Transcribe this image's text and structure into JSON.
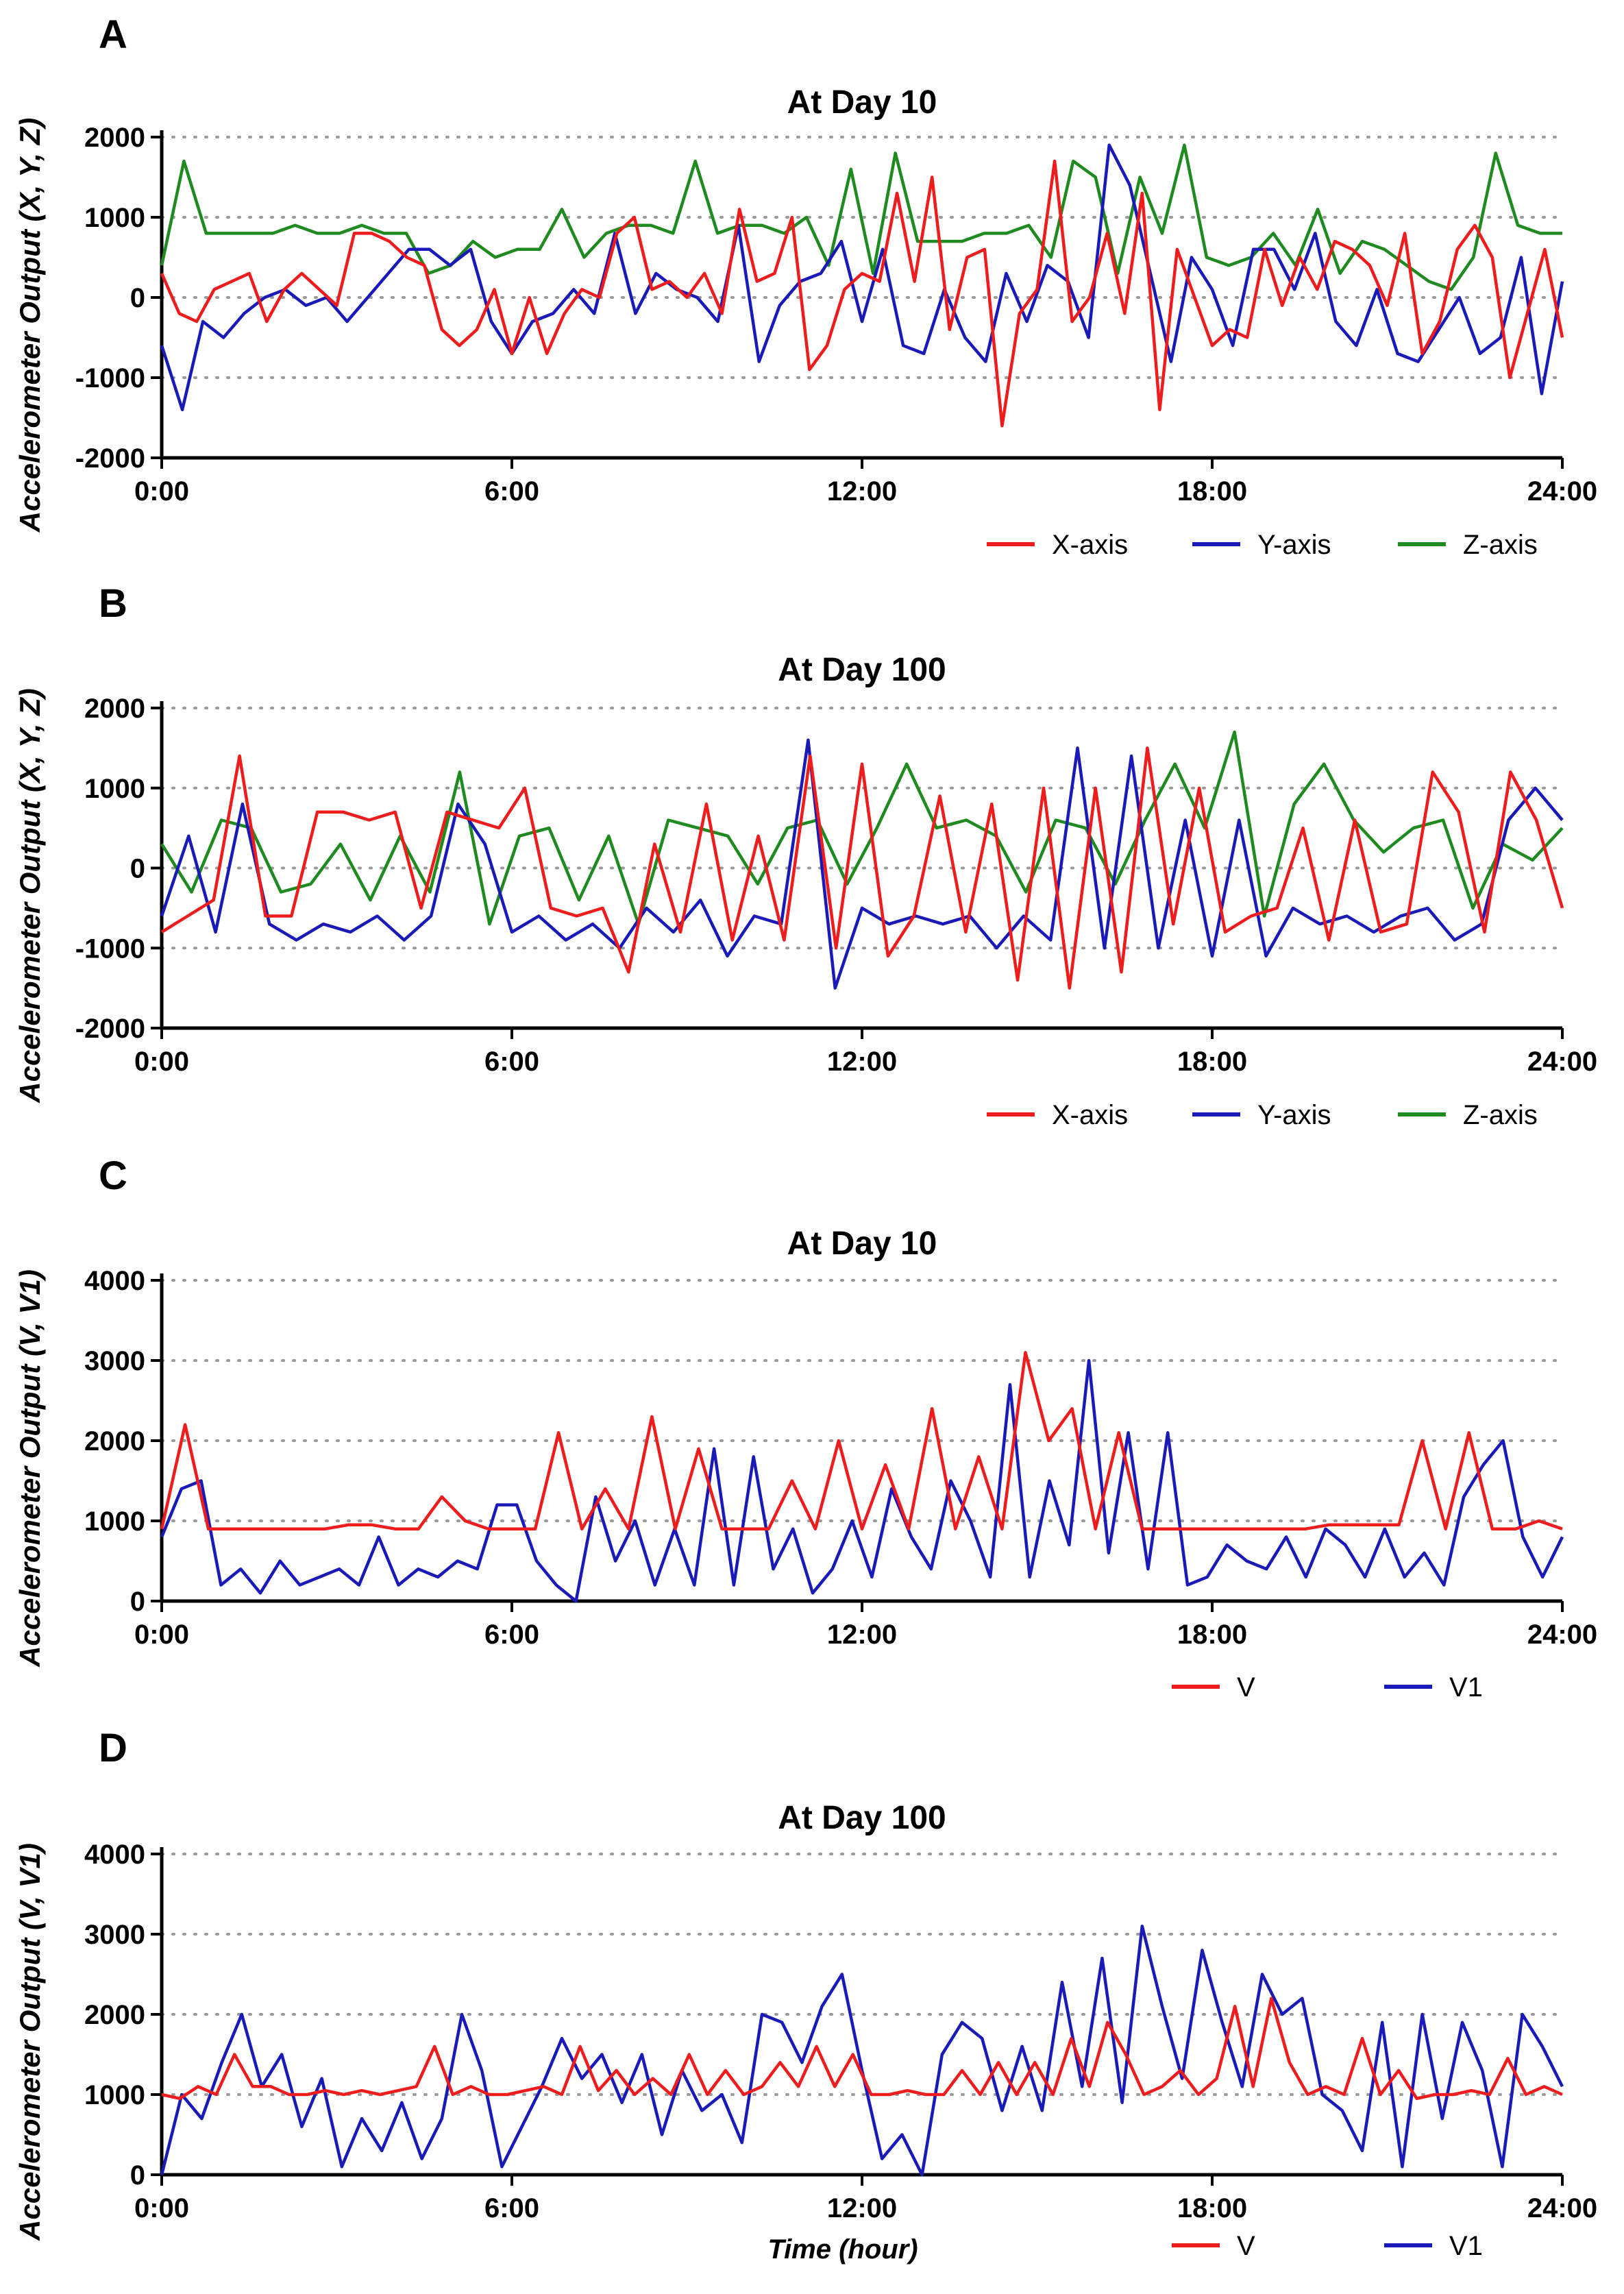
{
  "colors": {
    "red": "#ee1c1c",
    "blue": "#1a1ab8",
    "green": "#1f8a1f",
    "grid": "#9a9a9a",
    "axis": "#000000"
  },
  "chart_data": [
    {
      "panel": "A",
      "type": "line",
      "title": "At Day 10",
      "ylabel": "Accelerometer Output  (X, Y, Z)",
      "xlabel": "",
      "xlim": [
        0,
        24
      ],
      "ylim": [
        -2000,
        2000
      ],
      "x_ticks": [
        "0:00",
        "6:00",
        "12:00",
        "18:00",
        "24:00"
      ],
      "y_ticks": [
        "2000",
        "1000",
        "0",
        "-1000",
        "-2000"
      ],
      "grid": "horizontal dotted",
      "legend_position": "bottom-right",
      "series": [
        {
          "name": "X-axis",
          "color": "red",
          "values": [
            300,
            -200,
            -300,
            100,
            200,
            300,
            -300,
            100,
            300,
            100,
            -100,
            800,
            800,
            700,
            500,
            400,
            -400,
            -600,
            -400,
            100,
            -700,
            0,
            -700,
            -200,
            100,
            0,
            800,
            1000,
            100,
            200,
            0,
            300,
            -200,
            1100,
            200,
            300,
            1000,
            -900,
            -600,
            100,
            300,
            200,
            1300,
            200,
            1500,
            -400,
            500,
            600,
            -1600,
            -200,
            100,
            1700,
            -300,
            0,
            800,
            -200,
            1300,
            -1400,
            600,
            0,
            -600,
            -400,
            -500,
            600,
            -100,
            500,
            100,
            700,
            600,
            400,
            -100,
            800,
            -700,
            -300,
            600,
            900,
            500,
            -1000,
            -200,
            600,
            -500
          ]
        },
        {
          "name": "Y-axis",
          "color": "blue",
          "values": [
            -600,
            -1400,
            -300,
            -500,
            -200,
            0,
            100,
            -100,
            0,
            -300,
            0,
            300,
            600,
            600,
            400,
            600,
            -300,
            -700,
            -300,
            -200,
            100,
            -200,
            800,
            -200,
            300,
            100,
            0,
            -300,
            900,
            -800,
            -100,
            200,
            300,
            700,
            -300,
            600,
            -600,
            -700,
            100,
            -500,
            -800,
            300,
            -300,
            400,
            200,
            -500,
            1900,
            1400,
            300,
            -800,
            500,
            100,
            -600,
            600,
            600,
            100,
            800,
            -300,
            -600,
            100,
            -700,
            -800,
            -400,
            0,
            -700,
            -500,
            500,
            -1200,
            200
          ]
        },
        {
          "name": "Z-axis",
          "color": "green",
          "values": [
            400,
            1700,
            800,
            800,
            800,
            800,
            900,
            800,
            800,
            900,
            800,
            800,
            300,
            400,
            700,
            500,
            600,
            600,
            1100,
            500,
            800,
            900,
            900,
            800,
            1700,
            800,
            900,
            900,
            800,
            1000,
            400,
            1600,
            300,
            1800,
            700,
            700,
            700,
            800,
            800,
            900,
            500,
            1700,
            1500,
            300,
            1500,
            800,
            1900,
            500,
            400,
            500,
            800,
            400,
            1100,
            300,
            700,
            600,
            400,
            200,
            100,
            500,
            1800,
            900,
            800,
            800
          ]
        }
      ]
    },
    {
      "panel": "B",
      "type": "line",
      "title": "At Day 100",
      "ylabel": "Accelerometer Output  (X, Y, Z)",
      "xlabel": "",
      "xlim": [
        0,
        24
      ],
      "ylim": [
        -2000,
        2000
      ],
      "x_ticks": [
        "0:00",
        "6:00",
        "12:00",
        "18:00",
        "24:00"
      ],
      "y_ticks": [
        "2000",
        "1000",
        "0",
        "-1000",
        "-2000"
      ],
      "grid": "horizontal dotted",
      "legend_position": "bottom-right",
      "series": [
        {
          "name": "X-axis",
          "color": "red",
          "values": [
            -800,
            -600,
            -400,
            1400,
            -600,
            -600,
            700,
            700,
            600,
            700,
            -500,
            700,
            600,
            500,
            1000,
            -500,
            -600,
            -500,
            -1300,
            300,
            -800,
            800,
            -900,
            400,
            -900,
            1400,
            -1000,
            1300,
            -1100,
            -600,
            900,
            -800,
            800,
            -1400,
            1000,
            -1500,
            1000,
            -1300,
            1500,
            -700,
            1000,
            -800,
            -600,
            -500,
            500,
            -900,
            600,
            -800,
            -700,
            1200,
            700,
            -800,
            1200,
            600,
            -500
          ]
        },
        {
          "name": "Y-axis",
          "color": "blue",
          "values": [
            -600,
            400,
            -800,
            800,
            -700,
            -900,
            -700,
            -800,
            -600,
            -900,
            -600,
            800,
            300,
            -800,
            -600,
            -900,
            -700,
            -1000,
            -500,
            -800,
            -400,
            -1100,
            -600,
            -700,
            1600,
            -1500,
            -500,
            -700,
            -600,
            -700,
            -600,
            -1000,
            -600,
            -900,
            1500,
            -1000,
            1400,
            -1000,
            600,
            -1100,
            600,
            -1100,
            -500,
            -700,
            -600,
            -800,
            -600,
            -500,
            -900,
            -700,
            600,
            1000,
            600
          ]
        },
        {
          "name": "Z-axis",
          "color": "green",
          "values": [
            300,
            -300,
            600,
            500,
            -300,
            -200,
            300,
            -400,
            400,
            -300,
            1200,
            -700,
            400,
            500,
            -400,
            400,
            -700,
            600,
            500,
            400,
            -200,
            500,
            600,
            -200,
            500,
            1300,
            500,
            600,
            400,
            -300,
            600,
            500,
            -200,
            600,
            1300,
            500,
            1700,
            -600,
            800,
            1300,
            600,
            200,
            500,
            600,
            -500,
            300,
            100,
            500
          ]
        }
      ]
    },
    {
      "panel": "C",
      "type": "line",
      "title": "At Day 10",
      "ylabel": "Accelerometer Output  (V, V1)",
      "xlabel": "",
      "xlim": [
        0,
        24
      ],
      "ylim": [
        0,
        4000
      ],
      "x_ticks": [
        "0:00",
        "6:00",
        "12:00",
        "18:00",
        "24:00"
      ],
      "y_ticks": [
        "4000",
        "3000",
        "2000",
        "1000",
        "0"
      ],
      "grid": "horizontal dotted",
      "legend_position": "bottom-right",
      "series": [
        {
          "name": "V",
          "color": "red",
          "values": [
            900,
            2200,
            900,
            900,
            900,
            900,
            900,
            900,
            950,
            950,
            900,
            900,
            1300,
            1000,
            900,
            900,
            900,
            2100,
            900,
            1400,
            900,
            2300,
            900,
            1900,
            900,
            900,
            900,
            1500,
            900,
            2000,
            900,
            1700,
            900,
            2400,
            900,
            1800,
            900,
            3100,
            2000,
            2400,
            900,
            2100,
            900,
            900,
            900,
            900,
            900,
            900,
            900,
            900,
            950,
            950,
            950,
            950,
            2000,
            900,
            2100,
            900,
            900,
            1000,
            900
          ]
        },
        {
          "name": "V1",
          "color": "blue",
          "values": [
            800,
            1400,
            1500,
            200,
            400,
            100,
            500,
            200,
            300,
            400,
            200,
            800,
            200,
            400,
            300,
            500,
            400,
            1200,
            1200,
            500,
            200,
            0,
            1300,
            500,
            1000,
            200,
            900,
            200,
            1900,
            200,
            1800,
            400,
            900,
            100,
            400,
            1000,
            300,
            1400,
            800,
            400,
            1500,
            1000,
            300,
            2700,
            300,
            1500,
            700,
            3000,
            600,
            2100,
            400,
            2100,
            200,
            300,
            700,
            500,
            400,
            800,
            300,
            900,
            700,
            300,
            900,
            300,
            600,
            200,
            1300,
            1700,
            2000,
            800,
            300,
            800
          ]
        }
      ]
    },
    {
      "panel": "D",
      "type": "line",
      "title": "At Day 100",
      "ylabel": "Accelerometer Output  (V, V1)",
      "xlabel": "Time  (hour)",
      "xlim": [
        0,
        24
      ],
      "ylim": [
        0,
        4000
      ],
      "x_ticks": [
        "0:00",
        "6:00",
        "12:00",
        "18:00",
        "24:00"
      ],
      "y_ticks": [
        "4000",
        "3000",
        "2000",
        "1000",
        "0"
      ],
      "grid": "horizontal dotted",
      "legend_position": "bottom-right",
      "series": [
        {
          "name": "V",
          "color": "red",
          "values": [
            1000,
            950,
            1100,
            1000,
            1500,
            1100,
            1100,
            1000,
            1000,
            1050,
            1000,
            1050,
            1000,
            1050,
            1100,
            1600,
            1000,
            1100,
            1000,
            1000,
            1050,
            1100,
            1000,
            1600,
            1050,
            1300,
            1000,
            1200,
            1000,
            1500,
            1000,
            1300,
            1000,
            1100,
            1400,
            1100,
            1600,
            1100,
            1500,
            1000,
            1000,
            1050,
            1000,
            1000,
            1300,
            1000,
            1400,
            1000,
            1400,
            1000,
            1700,
            1100,
            1900,
            1500,
            1000,
            1100,
            1300,
            1000,
            1200,
            2100,
            1100,
            2200,
            1400,
            1000,
            1100,
            1000,
            1700,
            1000,
            1300,
            950,
            1000,
            1000,
            1050,
            1000,
            1450,
            1000,
            1100,
            1000
          ]
        },
        {
          "name": "V1",
          "color": "blue",
          "values": [
            0,
            1000,
            700,
            1400,
            2000,
            1100,
            1500,
            600,
            1200,
            100,
            700,
            300,
            900,
            200,
            700,
            2000,
            1300,
            100,
            600,
            1100,
            1700,
            1200,
            1500,
            900,
            1500,
            500,
            1300,
            800,
            1000,
            400,
            2000,
            1900,
            1400,
            2100,
            2500,
            1300,
            200,
            500,
            0,
            1500,
            1900,
            1700,
            800,
            1600,
            800,
            2400,
            1100,
            2700,
            900,
            3100,
            2100,
            1200,
            2800,
            1900,
            1100,
            2500,
            2000,
            2200,
            1000,
            800,
            300,
            1900,
            100,
            2000,
            700,
            1900,
            1300,
            100,
            2000,
            1600,
            1100
          ]
        }
      ]
    }
  ],
  "legend_glyphs": {
    "line_sample": "—"
  }
}
